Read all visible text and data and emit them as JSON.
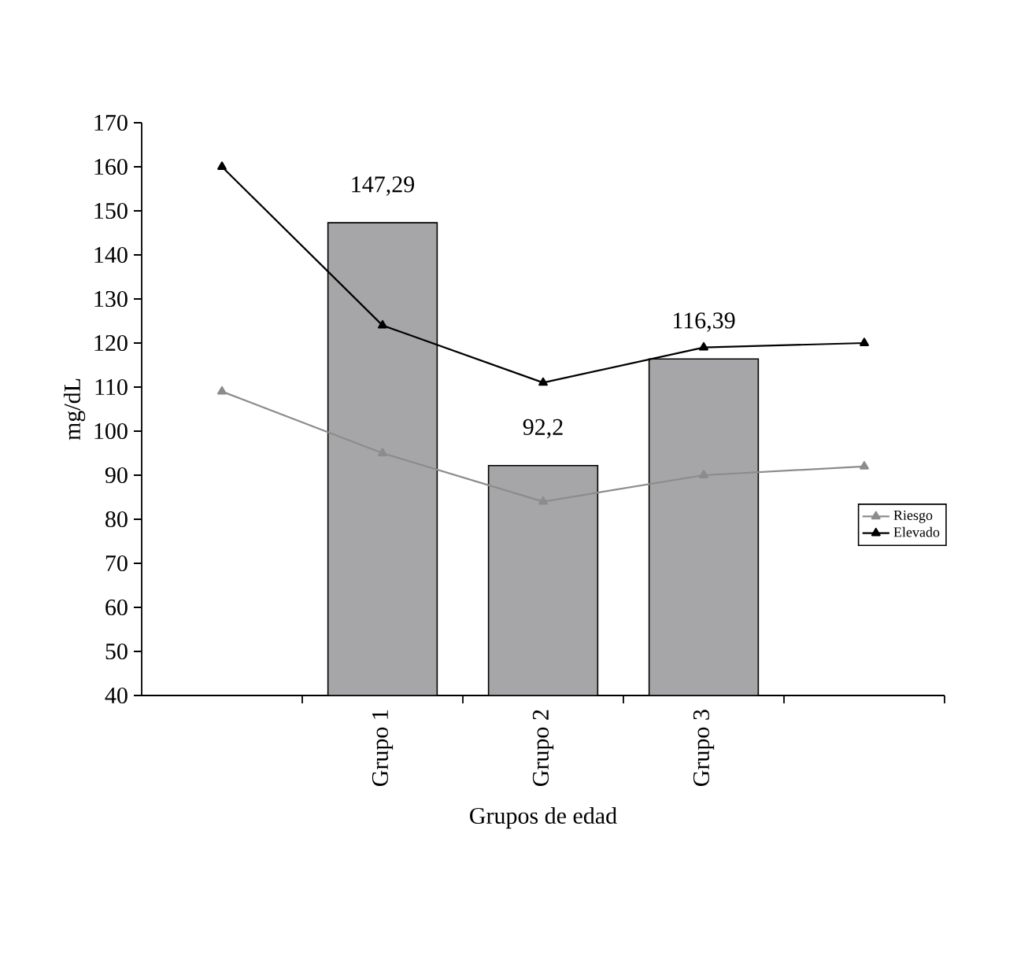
{
  "chart_data": {
    "type": "bar",
    "xlabel": "Grupos de edad",
    "ylabel": "mg/dL",
    "categories": [
      null,
      "Grupo 1",
      "Grupo 2",
      "Grupo 3",
      null
    ],
    "series": [
      {
        "color": "#a6a6a8",
        "values": [
          null,
          147.29,
          92.2,
          116.39,
          null
        ],
        "value_labels": [
          null,
          "147,29",
          "92,2",
          "116,39",
          null
        ]
      },
      {
        "type": "line",
        "name": "Riesgo",
        "color": "#8c8c8c",
        "values": [
          109,
          95,
          84,
          90,
          92
        ]
      },
      {
        "type": "line",
        "name": "Elevado",
        "color": "#000000",
        "values": [
          160,
          124,
          111,
          119,
          120
        ]
      }
    ],
    "ylim": [
      40,
      170
    ],
    "yticks": [
      40,
      50,
      60,
      70,
      80,
      90,
      100,
      110,
      120,
      130,
      140,
      150,
      160,
      170
    ],
    "grid": false,
    "legend": "right",
    "marker": "triangle",
    "line_style": "solid"
  }
}
